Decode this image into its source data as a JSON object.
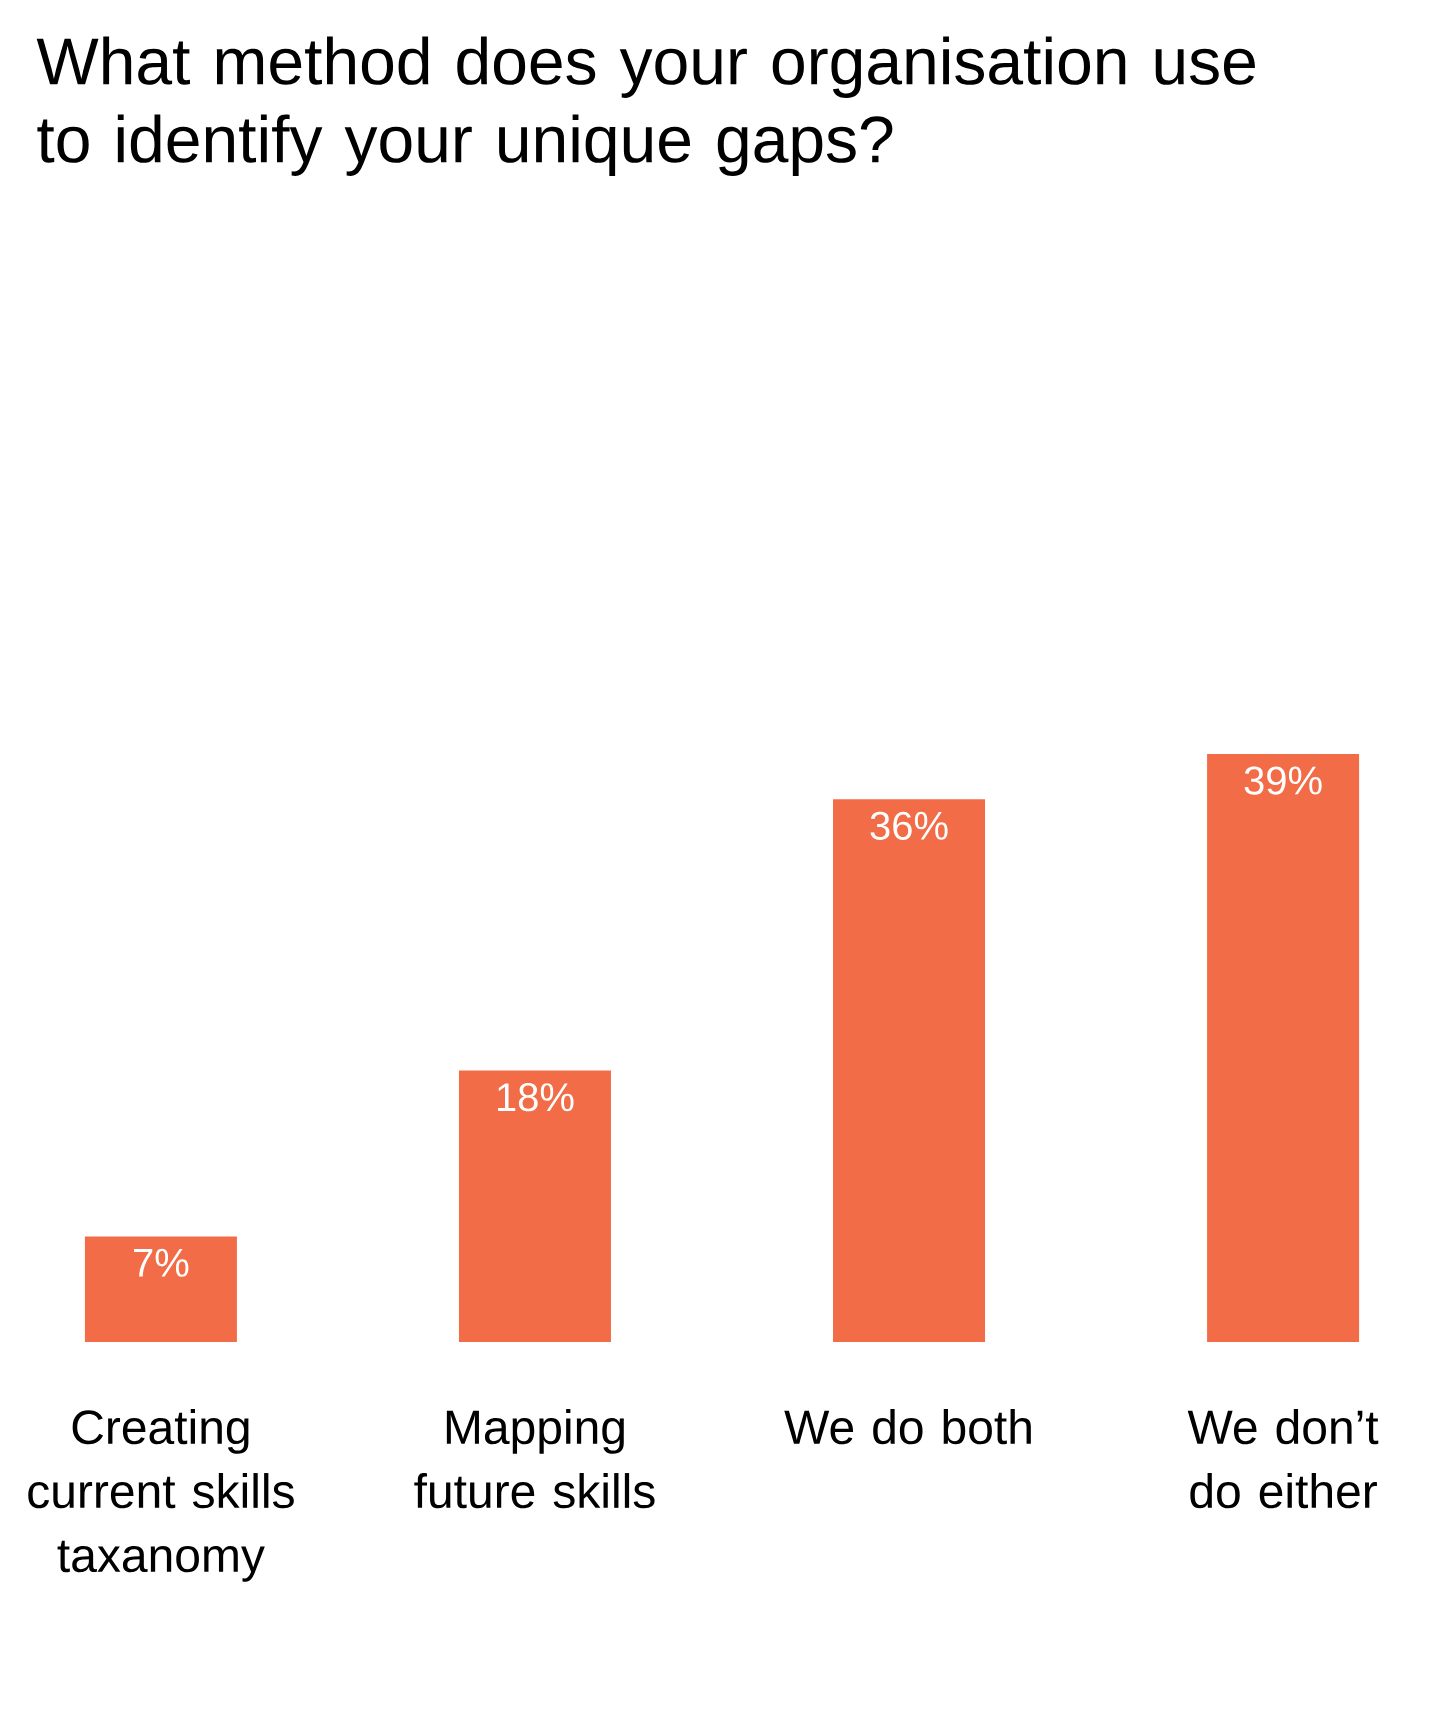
{
  "chart_data": {
    "type": "bar",
    "title": "What method does your organisation use to identify your unique gaps?",
    "categories": [
      "Creating current skills taxanomy",
      "Mapping future skills",
      "We do both",
      "We don’t do either"
    ],
    "values": [
      7,
      18,
      36,
      39
    ],
    "value_labels": [
      "7%",
      "18%",
      "36%",
      "39%"
    ],
    "color": "#f26c47"
  }
}
